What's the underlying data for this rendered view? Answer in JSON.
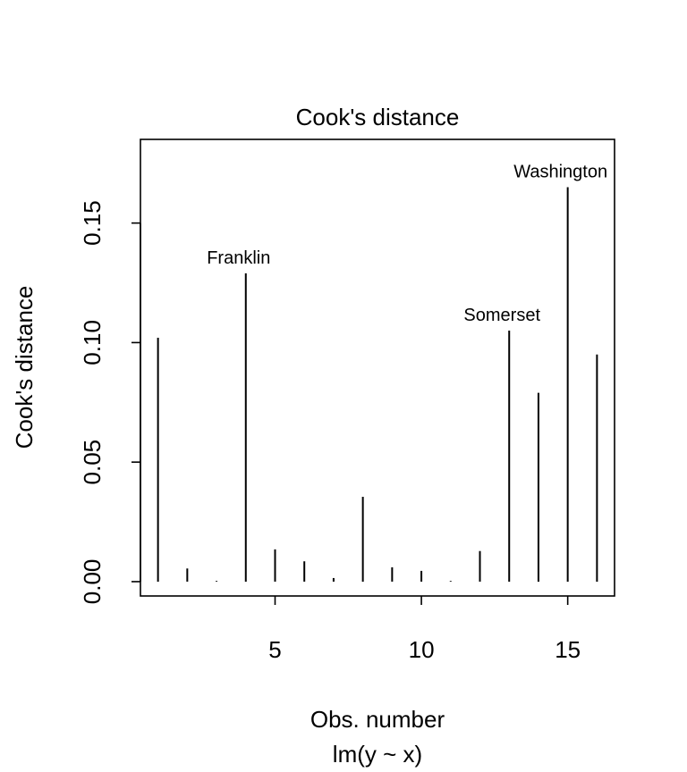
{
  "chart_data": {
    "type": "bar",
    "title": "Cook's distance",
    "xlabel": "Obs. number",
    "subtitle": "lm(y ~ x)",
    "ylabel": "Cook's distance",
    "xlim": [
      0.4,
      16.6
    ],
    "ylim": [
      -0.006,
      0.185
    ],
    "x_ticks": [
      5,
      10,
      15
    ],
    "y_ticks": [
      0.0,
      0.05,
      0.1,
      0.15
    ],
    "y_tick_labels": [
      "0.00",
      "0.05",
      "0.10",
      "0.15"
    ],
    "x": [
      1,
      2,
      3,
      4,
      5,
      6,
      7,
      8,
      9,
      10,
      11,
      12,
      13,
      14,
      15,
      16
    ],
    "values": [
      0.102,
      0.0055,
      0.0003,
      0.129,
      0.0135,
      0.0085,
      0.0015,
      0.0355,
      0.006,
      0.0045,
      0.0003,
      0.0128,
      0.105,
      0.079,
      0.165,
      0.095
    ],
    "annotations": [
      {
        "x": 4,
        "label": "Franklin"
      },
      {
        "x": 13,
        "label": "Somerset"
      },
      {
        "x": 15,
        "label": "Washington"
      }
    ],
    "grid": false,
    "legend": "none"
  }
}
